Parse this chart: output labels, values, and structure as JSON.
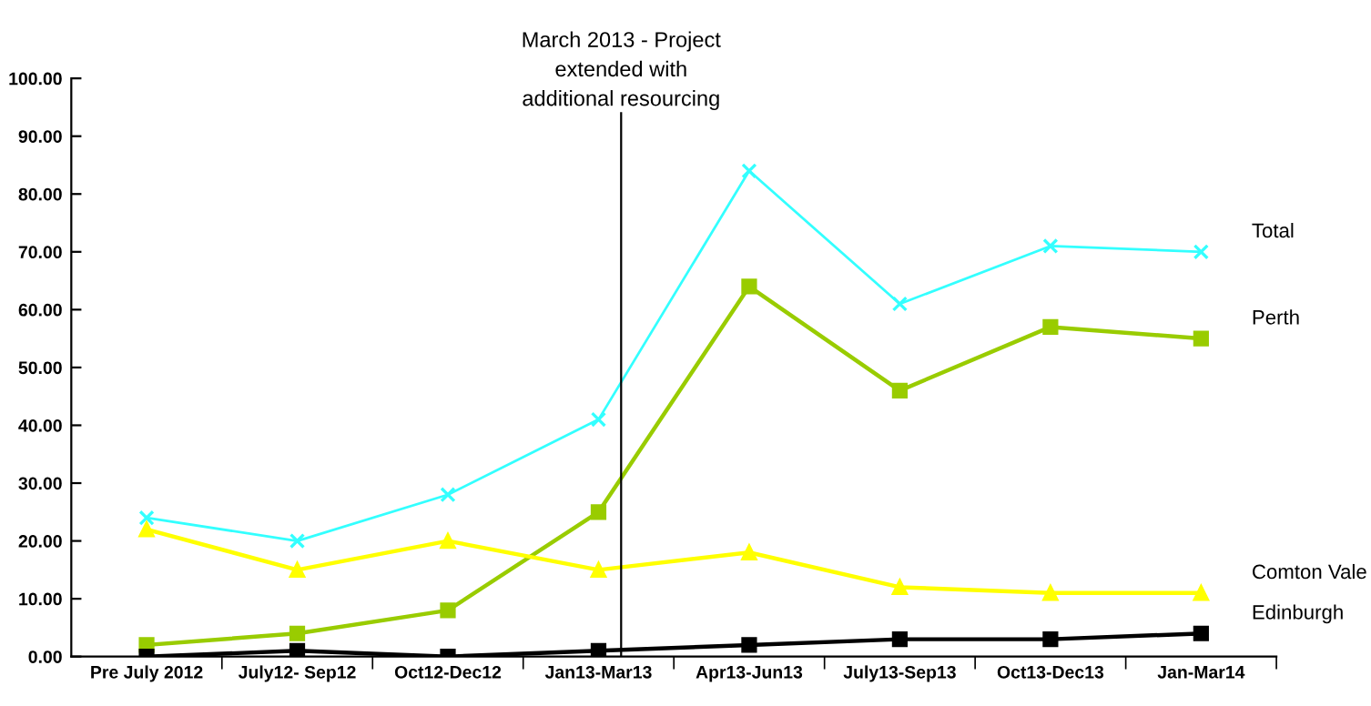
{
  "chart_data": {
    "type": "line",
    "categories": [
      "Pre July 2012",
      "July12- Sep12",
      "Oct12-Dec12",
      "Jan13-Mar13",
      "Apr13-Jun13",
      "July13-Sep13",
      "Oct13-Dec13",
      "Jan-Mar14"
    ],
    "series": [
      {
        "name": "Total",
        "color": "#33ffff",
        "marker": "cross",
        "values": [
          24,
          20,
          28,
          41,
          84,
          61,
          71,
          70
        ]
      },
      {
        "name": "Perth",
        "color": "#99cc00",
        "marker": "square",
        "values": [
          2,
          4,
          8,
          25,
          64,
          46,
          57,
          55
        ]
      },
      {
        "name": "Comton Vale",
        "color": "#ffff00",
        "marker": "triangle",
        "values": [
          22,
          15,
          20,
          15,
          18,
          12,
          11,
          11
        ]
      },
      {
        "name": "Edinburgh",
        "color": "#000000",
        "marker": "square",
        "values": [
          0,
          1,
          0,
          1,
          2,
          3,
          3,
          4
        ]
      }
    ],
    "ylim": [
      0,
      100
    ],
    "yticks": [
      {
        "value": 0,
        "label": "0.00"
      },
      {
        "value": 10,
        "label": "10.00"
      },
      {
        "value": 20,
        "label": "20.00"
      },
      {
        "value": 30,
        "label": "30.00"
      },
      {
        "value": 40,
        "label": "40.00"
      },
      {
        "value": 50,
        "label": "50.00"
      },
      {
        "value": 60,
        "label": "60.00"
      },
      {
        "value": 70,
        "label": "70.00"
      },
      {
        "value": 80,
        "label": "80.00"
      },
      {
        "value": 90,
        "label": "90.00"
      },
      {
        "value": 100,
        "label": "100.00"
      }
    ],
    "ref_lines": [
      {
        "axis": "x",
        "value": "Jan13-Mar13",
        "label": "March 2013 - Project\nextended with\nadditional resourcing",
        "color": "#000000"
      }
    ],
    "grid": false,
    "legend": false
  }
}
